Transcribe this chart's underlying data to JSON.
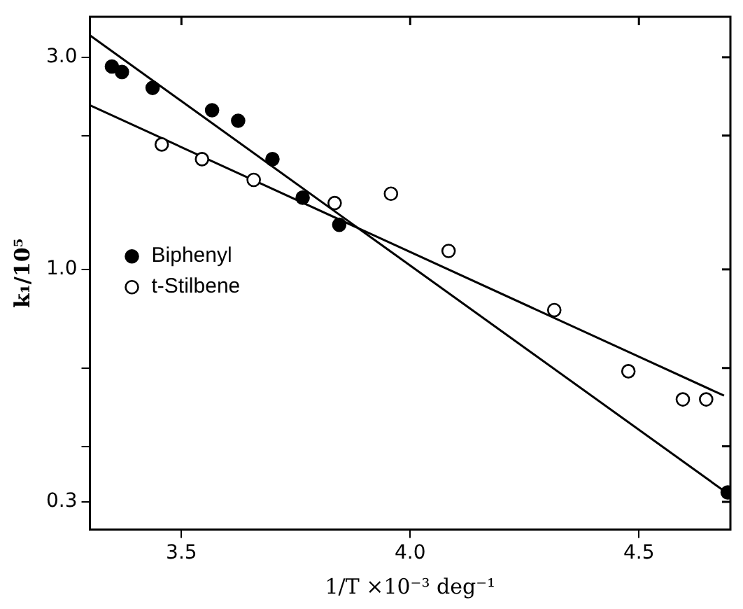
{
  "chart_data": {
    "type": "scatter",
    "xlabel": "1/T ×10⁻³ deg⁻¹",
    "ylabel": "k₁/10⁵",
    "log": "y",
    "xlim": [
      3.3,
      4.7
    ],
    "ylim": [
      0.26,
      3.7
    ],
    "xticks": [
      3.5,
      {
        "value": 4,
        "label": "4.0"
      },
      4.5
    ],
    "yticks": [
      {
        "value": 0.3,
        "label": "0.3"
      },
      {
        "value": 0.4,
        "label": null
      },
      {
        "value": 0.6,
        "label": null
      },
      {
        "value": 1,
        "label": "1.0"
      },
      {
        "value": 2,
        "label": null
      },
      {
        "value": 3,
        "label": "3.0"
      }
    ],
    "grid": false,
    "legend": "left",
    "series": [
      {
        "name": "Biphenyl",
        "color": "#000000",
        "marker": "circle",
        "x": [
          3.348,
          3.37,
          3.437,
          3.567,
          3.624,
          3.699,
          3.765,
          3.845,
          4.694
        ],
        "values": [
          2.86,
          2.78,
          2.56,
          2.28,
          2.16,
          1.77,
          1.45,
          1.26,
          0.315
        ]
      },
      {
        "name": "t-Stilbene",
        "color": "#ffffff",
        "marker": "circle",
        "x": [
          3.457,
          3.545,
          3.658,
          3.835,
          3.958,
          4.084,
          4.315,
          4.477,
          4.596,
          4.647
        ],
        "values": [
          1.91,
          1.77,
          1.59,
          1.41,
          1.48,
          1.1,
          0.81,
          0.59,
          0.51,
          0.51
        ]
      },
      {
        "type": "line",
        "color": "#000000",
        "marker": "none",
        "x": [
          3.3,
          4.7
        ],
        "values": [
          3.36,
          0.31
        ]
      },
      {
        "type": "line",
        "color": "#000000",
        "marker": "none",
        "x": [
          3.3,
          4.686
        ],
        "values": [
          2.34,
          0.52
        ]
      }
    ]
  }
}
